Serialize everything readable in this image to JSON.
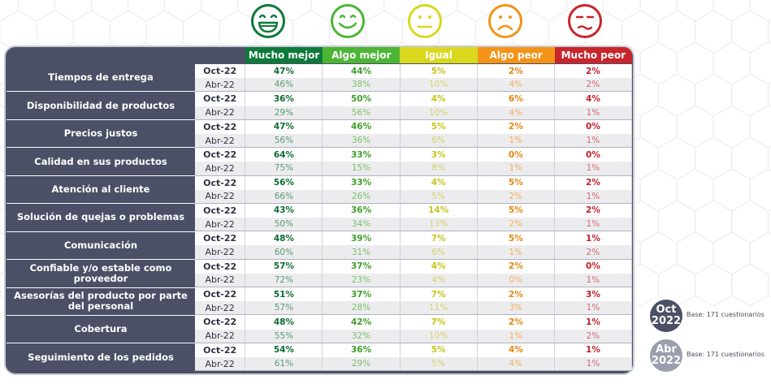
{
  "colors": {
    "mucho_mejor": "#0d7a3a",
    "algo_mejor": "#4cb535",
    "igual": "#d9d81f",
    "algo_peor": "#f39418",
    "mucho_peor": "#c9252c",
    "panel": "#4b5066",
    "badge_oct": "#4b5066",
    "badge_abr": "#9b9ead"
  },
  "faces": [
    {
      "icon": "very-happy-face-icon",
      "color": "#0d7a3a"
    },
    {
      "icon": "happy-face-icon",
      "color": "#4cb535"
    },
    {
      "icon": "neutral-face-icon",
      "color": "#d9d81f"
    },
    {
      "icon": "sad-face-icon",
      "color": "#f39418"
    },
    {
      "icon": "very-sad-face-icon",
      "color": "#c9252c"
    }
  ],
  "columns": [
    {
      "label": "Mucho mejor",
      "color": "#0d7a3a",
      "text_color": "#0d6b33",
      "light_color": "#5a9a6e"
    },
    {
      "label": "Algo mejor",
      "color": "#4cb535",
      "text_color": "#3f9e2a",
      "light_color": "#7cbf6a"
    },
    {
      "label": "Igual",
      "color": "#d9d81f",
      "text_color": "#c6c41a",
      "light_color": "#d5d36a"
    },
    {
      "label": "Algo peor",
      "color": "#f39418",
      "text_color": "#e5860f",
      "light_color": "#eeb060"
    },
    {
      "label": "Mucho peor",
      "color": "#c9252c",
      "text_color": "#c0202a",
      "light_color": "#d36a6e"
    }
  ],
  "categories": [
    {
      "name": "Tiempos de entrega",
      "oct": {
        "label": "Oct-22",
        "values": [
          "47%",
          "44%",
          "5%",
          "2%",
          "2%"
        ]
      },
      "abr": {
        "label": "Abr-22",
        "values": [
          "46%",
          "38%",
          "10%",
          "4%",
          "2%"
        ]
      }
    },
    {
      "name": "Disponibilidad de productos",
      "oct": {
        "label": "Oct-22",
        "values": [
          "36%",
          "50%",
          "4%",
          "6%",
          "4%"
        ]
      },
      "abr": {
        "label": "Abr-22",
        "values": [
          "29%",
          "56%",
          "10%",
          "4%",
          "1%"
        ]
      }
    },
    {
      "name": "Precios justos",
      "oct": {
        "label": "Oct-22",
        "values": [
          "47%",
          "46%",
          "5%",
          "2%",
          "0%"
        ]
      },
      "abr": {
        "label": "Abr-22",
        "values": [
          "56%",
          "36%",
          "6%",
          "1%",
          "1%"
        ]
      }
    },
    {
      "name": "Calidad en sus productos",
      "oct": {
        "label": "Oct-22",
        "values": [
          "64%",
          "33%",
          "3%",
          "0%",
          "0%"
        ]
      },
      "abr": {
        "label": "Abr-22",
        "values": [
          "75%",
          "15%",
          "8%",
          "1%",
          "1%"
        ]
      }
    },
    {
      "name": "Atención al cliente",
      "oct": {
        "label": "Oct-22",
        "values": [
          "56%",
          "33%",
          "4%",
          "5%",
          "2%"
        ]
      },
      "abr": {
        "label": "Abr-22",
        "values": [
          "66%",
          "26%",
          "5%",
          "2%",
          "1%"
        ]
      }
    },
    {
      "name": "Solución de quejas o problemas",
      "oct": {
        "label": "Oct-22",
        "values": [
          "43%",
          "36%",
          "14%",
          "5%",
          "2%"
        ]
      },
      "abr": {
        "label": "Abr-22",
        "values": [
          "50%",
          "34%",
          "13%",
          "2%",
          "1%"
        ]
      }
    },
    {
      "name": "Comunicación",
      "oct": {
        "label": "Oct-22",
        "values": [
          "48%",
          "39%",
          "7%",
          "5%",
          "1%"
        ]
      },
      "abr": {
        "label": "Abr-22",
        "values": [
          "60%",
          "31%",
          "6%",
          "1%",
          "2%"
        ]
      }
    },
    {
      "name": "Confiable y/o estable como proveedor",
      "oct": {
        "label": "Oct-22",
        "values": [
          "57%",
          "37%",
          "4%",
          "2%",
          "0%"
        ]
      },
      "abr": {
        "label": "Abr-22",
        "values": [
          "72%",
          "23%",
          "4%",
          "0%",
          "1%"
        ]
      }
    },
    {
      "name": "Asesorías del producto por parte del personal",
      "oct": {
        "label": "Oct-22",
        "values": [
          "51%",
          "37%",
          "7%",
          "2%",
          "3%"
        ]
      },
      "abr": {
        "label": "Abr-22",
        "values": [
          "57%",
          "28%",
          "11%",
          "3%",
          "1%"
        ]
      }
    },
    {
      "name": "Cobertura",
      "oct": {
        "label": "Oct-22",
        "values": [
          "48%",
          "42%",
          "7%",
          "2%",
          "1%"
        ]
      },
      "abr": {
        "label": "Abr-22",
        "values": [
          "55%",
          "32%",
          "10%",
          "1%",
          "2%"
        ]
      }
    },
    {
      "name": "Seguimiento de los pedidos",
      "oct": {
        "label": "Oct-22",
        "values": [
          "54%",
          "36%",
          "5%",
          "4%",
          "1%"
        ]
      },
      "abr": {
        "label": "Abr-22",
        "values": [
          "61%",
          "29%",
          "5%",
          "4%",
          "1%"
        ]
      }
    }
  ],
  "badges": {
    "oct": {
      "line1": "Oct",
      "line2": "2022",
      "note": "Base: 171 cuestionarios"
    },
    "abr": {
      "line1": "Abr",
      "line2": "2022",
      "note": "Base: 171 cuestionarios"
    }
  }
}
